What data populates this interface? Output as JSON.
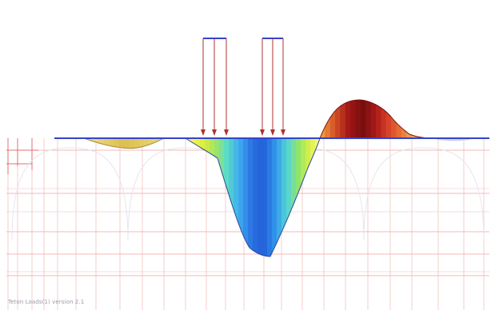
{
  "status_text": "Teton Loads(1) version 2.1",
  "colors": {
    "grid": "#f2b8b8",
    "arch": "#e6e6ee",
    "baseline": "#3344cc",
    "load_arrow": "#b03030",
    "load_bar": "#3344cc",
    "background": "#ffffff"
  },
  "diagram": {
    "type": "settlement-profile",
    "loads": [
      {
        "name": "left-load",
        "arrow_count": 3
      },
      {
        "name": "right-load",
        "arrow_count": 3
      }
    ],
    "regions": [
      {
        "name": "left-depression",
        "direction": "below",
        "palette": "yellow"
      },
      {
        "name": "main-depression",
        "direction": "below",
        "palette": "yellow-cyan-blue"
      },
      {
        "name": "heave",
        "direction": "above",
        "palette": "orange-red-maroon"
      },
      {
        "name": "right-depression",
        "direction": "below",
        "palette": "faint"
      }
    ]
  }
}
